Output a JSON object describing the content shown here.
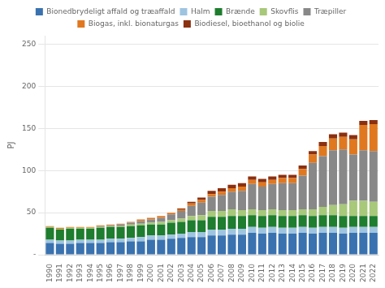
{
  "chart_data": {
    "type": "bar",
    "stacked": true,
    "ylabel": "PJ",
    "categories": [
      "1990",
      "1991",
      "1992",
      "1993",
      "1994",
      "1995",
      "1996",
      "1997",
      "1998",
      "1999",
      "2000",
      "2001",
      "2002",
      "2003",
      "2004",
      "2005",
      "2006",
      "2007",
      "2008",
      "2009",
      "2010",
      "2011",
      "2012",
      "2013",
      "2014",
      "2015",
      "2016",
      "2017",
      "2018",
      "2019",
      "2020",
      "2021",
      "2022"
    ],
    "series": [
      {
        "name": "Bionedbrydeligt affald og træaffald",
        "color": "#3a72b0",
        "values": [
          14,
          13,
          13,
          14,
          14,
          14,
          15,
          15,
          16,
          16,
          18,
          18,
          19,
          20,
          21,
          21,
          23,
          23,
          24,
          24,
          26,
          25,
          26,
          25,
          25,
          26,
          25,
          26,
          26,
          25,
          26,
          26,
          26
        ]
      },
      {
        "name": "Halm",
        "color": "#9ec4e0",
        "values": [
          4,
          4,
          4,
          4,
          4,
          4,
          4,
          4,
          4,
          5,
          5,
          5,
          5,
          5,
          6,
          6,
          7,
          7,
          7,
          7,
          7,
          7,
          7,
          7,
          7,
          7,
          7,
          7,
          7,
          7,
          7,
          7,
          7
        ]
      },
      {
        "name": "Brænde",
        "color": "#1e7d2e",
        "values": [
          14,
          13,
          14,
          13,
          13,
          14,
          14,
          14,
          14,
          14,
          13,
          13,
          14,
          14,
          14,
          14,
          15,
          15,
          15,
          15,
          14,
          14,
          14,
          14,
          14,
          14,
          14,
          14,
          14,
          14,
          13,
          13,
          13
        ]
      },
      {
        "name": "Skovflis",
        "color": "#a8c87a",
        "values": [
          1,
          1,
          1,
          1,
          1,
          1,
          1,
          1,
          2,
          2,
          2,
          3,
          3,
          4,
          5,
          6,
          7,
          7,
          8,
          7,
          7,
          7,
          7,
          7,
          7,
          7,
          8,
          10,
          12,
          14,
          18,
          18,
          17
        ]
      },
      {
        "name": "Træpiller",
        "color": "#888888",
        "values": [
          0,
          0,
          0,
          0,
          0,
          1,
          1,
          2,
          2,
          3,
          4,
          5,
          7,
          9,
          12,
          15,
          17,
          19,
          21,
          23,
          30,
          28,
          30,
          32,
          32,
          40,
          55,
          60,
          65,
          65,
          55,
          60,
          60
        ]
      },
      {
        "name": "Biogas, inkl. bionaturgas",
        "color": "#e07820",
        "values": [
          1,
          1,
          1,
          1,
          1,
          1,
          1,
          1,
          1,
          2,
          2,
          2,
          2,
          2,
          3,
          3,
          3,
          4,
          4,
          5,
          5,
          5,
          5,
          6,
          6,
          8,
          10,
          12,
          14,
          15,
          18,
          30,
          32
        ]
      },
      {
        "name": "Biodiesel, bioethanol og biolie",
        "color": "#8b3010",
        "values": [
          0,
          0,
          0,
          0,
          0,
          0,
          0,
          0,
          0,
          0,
          0,
          0,
          0,
          1,
          2,
          3,
          4,
          4,
          4,
          4,
          4,
          4,
          4,
          4,
          4,
          4,
          4,
          5,
          5,
          5,
          5,
          5,
          5
        ]
      }
    ],
    "ylim": [
      0,
      260
    ],
    "yticks": [
      {
        "value": 0,
        "label": "-"
      },
      50,
      100,
      150,
      200,
      250
    ],
    "grid": true,
    "legend": "top"
  }
}
